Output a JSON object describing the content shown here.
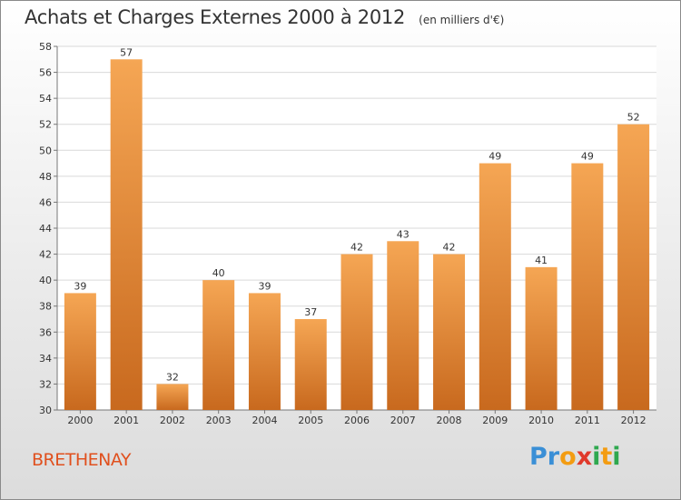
{
  "title": "Achats et Charges Externes 2000 à 2012",
  "unit_note": "(en milliers d'€)",
  "commune": "BRETHENAY",
  "logo": {
    "text": "Proxiti",
    "letter_colors": [
      "#3a8fd6",
      "#3a8fd6",
      "#f39c12",
      "#e0392b",
      "#2fa84f",
      "#f39c12",
      "#2fa84f"
    ]
  },
  "colors": {
    "bar_light": "#f5a654",
    "bar_dark": "#c8691e",
    "commune_text": "#e0501e"
  },
  "chart_data": {
    "type": "bar",
    "title": "Achats et Charges Externes 2000 à 2012",
    "subtitle": "(en milliers d'€)",
    "categories": [
      "2000",
      "2001",
      "2002",
      "2003",
      "2004",
      "2005",
      "2006",
      "2007",
      "2008",
      "2009",
      "2010",
      "2011",
      "2012"
    ],
    "values": [
      39,
      57,
      32,
      40,
      39,
      37,
      42,
      43,
      42,
      49,
      41,
      49,
      52
    ],
    "ylim": [
      30,
      58
    ],
    "yticks": [
      30,
      32,
      34,
      36,
      38,
      40,
      42,
      44,
      46,
      48,
      50,
      52,
      54,
      56,
      58
    ],
    "grid": true,
    "xlabel": "",
    "ylabel": ""
  }
}
